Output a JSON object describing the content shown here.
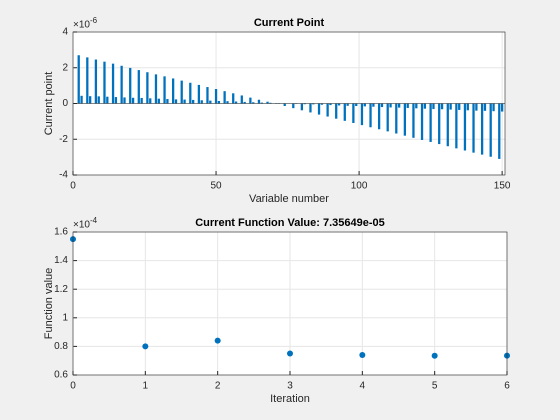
{
  "chart_data": [
    {
      "type": "bar",
      "title": "Current Point",
      "xlabel": "Variable number",
      "ylabel": "Current point",
      "y_multiplier_base": "×10",
      "y_multiplier_exponent": "-6",
      "color": "#0072bd",
      "grid": true,
      "xlim": [
        0,
        151
      ],
      "xticks": [
        0,
        50,
        100,
        150
      ],
      "ylim": [
        -4,
        4
      ],
      "yticks": [
        -4,
        -2,
        0,
        2,
        4
      ],
      "x": [
        1,
        2,
        3,
        4,
        5,
        6,
        7,
        8,
        9,
        10,
        11,
        12,
        13,
        14,
        15,
        16,
        17,
        18,
        19,
        20,
        21,
        22,
        23,
        24,
        25,
        26,
        27,
        28,
        29,
        30,
        31,
        32,
        33,
        34,
        35,
        36,
        37,
        38,
        39,
        40,
        41,
        42,
        43,
        44,
        45,
        46,
        47,
        48,
        49,
        50,
        51,
        52,
        53,
        54,
        55,
        56,
        57,
        58,
        59,
        60,
        61,
        62,
        63,
        64,
        65,
        66,
        67,
        68,
        69,
        70,
        71,
        72,
        73,
        74,
        75,
        76,
        77,
        78,
        79,
        80,
        81,
        82,
        83,
        84,
        85,
        86,
        87,
        88,
        89,
        90,
        91,
        92,
        93,
        94,
        95,
        96,
        97,
        98,
        99,
        100,
        101,
        102,
        103,
        104,
        105,
        106,
        107,
        108,
        109,
        110,
        111,
        112,
        113,
        114,
        115,
        116,
        117,
        118,
        119,
        120,
        121,
        122,
        123,
        124,
        125,
        126,
        127,
        128,
        129,
        130,
        131,
        132,
        133,
        134,
        135,
        136,
        137,
        138,
        139,
        140,
        141,
        142,
        143,
        144,
        145,
        146,
        147,
        148,
        149,
        150
      ],
      "values": [
        0,
        2.7,
        0.43,
        0,
        2.58,
        0.41,
        0,
        2.46,
        0.4,
        0,
        2.34,
        0.38,
        0,
        2.23,
        0.36,
        0,
        2.11,
        0.34,
        0,
        1.99,
        0.32,
        0,
        1.87,
        0.31,
        0,
        1.75,
        0.29,
        0,
        1.63,
        0.27,
        0,
        1.52,
        0.25,
        0,
        1.4,
        0.23,
        0,
        1.28,
        0.22,
        0,
        1.16,
        0.2,
        0,
        1.04,
        0.18,
        0,
        0.92,
        0.16,
        0,
        0.81,
        0.14,
        0,
        0.69,
        0.13,
        0,
        0.57,
        0.11,
        0,
        0.45,
        0.09,
        0,
        0.33,
        0.07,
        0,
        0.21,
        0.05,
        0,
        0.1,
        0.04,
        0,
        -0.02,
        0.02,
        0,
        -0.14,
        0.0,
        0,
        -0.26,
        -0.02,
        0,
        -0.38,
        -0.04,
        0,
        -0.5,
        -0.05,
        0,
        -0.62,
        -0.07,
        0,
        -0.73,
        -0.09,
        0,
        -0.85,
        -0.11,
        0,
        -0.97,
        -0.13,
        0,
        -1.09,
        -0.14,
        0,
        -1.21,
        -0.16,
        0,
        -1.33,
        -0.18,
        0,
        -1.44,
        -0.2,
        0,
        -1.56,
        -0.22,
        0,
        -1.68,
        -0.23,
        0,
        -1.8,
        -0.25,
        0,
        -1.92,
        -0.27,
        0,
        -2.04,
        -0.29,
        0,
        -2.15,
        -0.31,
        0,
        -2.27,
        -0.32,
        0,
        -2.39,
        -0.34,
        0,
        -2.51,
        -0.36,
        0,
        -2.63,
        -0.38,
        0,
        -2.75,
        -0.4,
        0,
        -2.86,
        -0.41,
        0,
        -2.98,
        -0.43,
        0,
        -3.1,
        -0.45
      ]
    },
    {
      "type": "scatter",
      "title": "Current Function Value: 7.35649e-05",
      "xlabel": "Iteration",
      "ylabel": "Function value",
      "y_multiplier_base": "×10",
      "y_multiplier_exponent": "-4",
      "color": "#0072bd",
      "grid": true,
      "xlim": [
        0,
        6
      ],
      "xticks": [
        0,
        1,
        2,
        3,
        4,
        5,
        6
      ],
      "ylim": [
        0.6,
        1.6
      ],
      "yticks": [
        0.6,
        0.8,
        1,
        1.2,
        1.4,
        1.6
      ],
      "x": [
        0,
        1,
        2,
        3,
        4,
        5,
        6
      ],
      "values": [
        1.55,
        0.8,
        0.84,
        0.75,
        0.74,
        0.735,
        0.735649
      ]
    }
  ]
}
